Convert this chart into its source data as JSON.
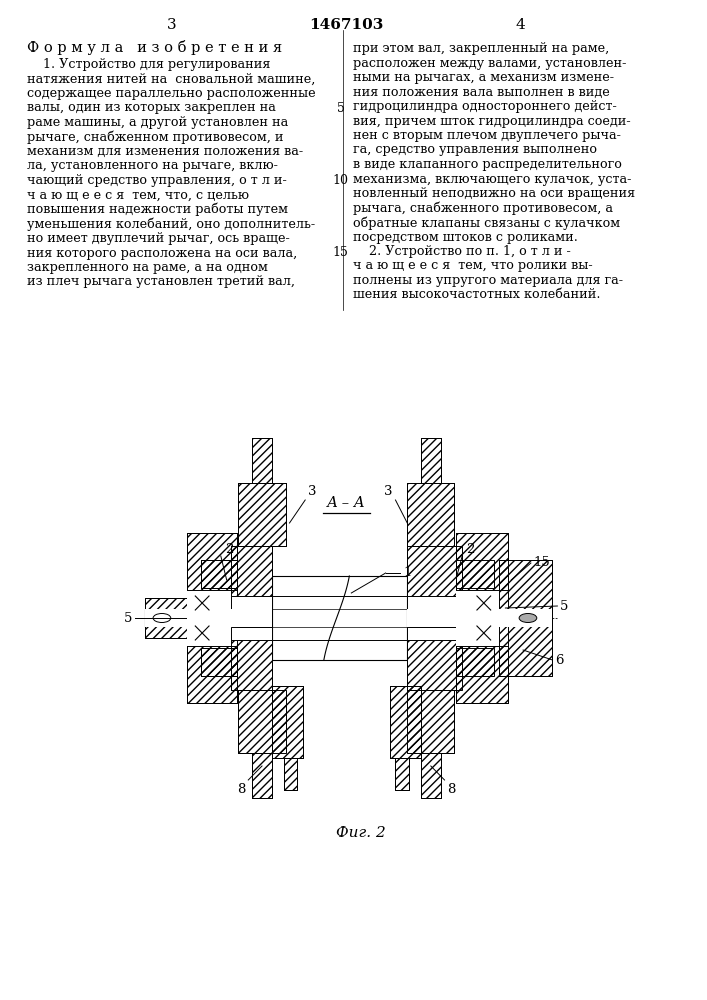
{
  "page_number_left": "3",
  "page_number_center": "1467103",
  "page_number_right": "4",
  "header_left": "Ф о р м у л а   и з о б р е т е н и я",
  "col_left_text": [
    "    1. Устройство для регулирования",
    "натяжения нитей на  сновальной машине,",
    "содержащее параллельно расположенные",
    "валы, один из которых закреплен на",
    "раме машины, а другой установлен на",
    "рычаге, снабженном противовесом, и",
    "механизм для изменения положения ва-",
    "ла, установленного на рычаге, вклю-",
    "чающий средство управления, о т л и-",
    "ч а ю щ е е с я  тем, что, с целью",
    "повышения надежности работы путем",
    "уменьшения колебаний, оно дополнитель-",
    "но имеет двуплечий рычаг, ось враще-",
    "ния которого расположена на оси вала,",
    "закрепленного на раме, а на одном",
    "из плеч рычага установлен третий вал,"
  ],
  "col_right_text": [
    "при этом вал, закрепленный на раме,",
    "расположен между валами, установлен-",
    "ными на рычагах, а механизм измене-",
    "ния положения вала выполнен в виде",
    "гидроцилиндра одностороннего дейст-",
    "вия, причем шток гидроцилиндра соеди-",
    "нен с вторым плечом двуплечего рыча-",
    "га, средство управления выполнено",
    "в виде клапанного распределительного",
    "механизма, включающего кулачок, уста-",
    "новленный неподвижно на оси вращения",
    "рычага, снабженного противовесом, а",
    "обратные клапаны связаны с кулачком",
    "посредством штоков с роликами.",
    "    2. Устройство по п. 1, о т л и -",
    "ч а ю щ е е с я  тем, что ролики вы-",
    "полнены из упругого материала для га-",
    "шения высокочастотных колебаний."
  ],
  "fig_label": "Фиг. 2",
  "section_label": "А – А",
  "bg_color": "#ffffff",
  "text_color": "#000000"
}
